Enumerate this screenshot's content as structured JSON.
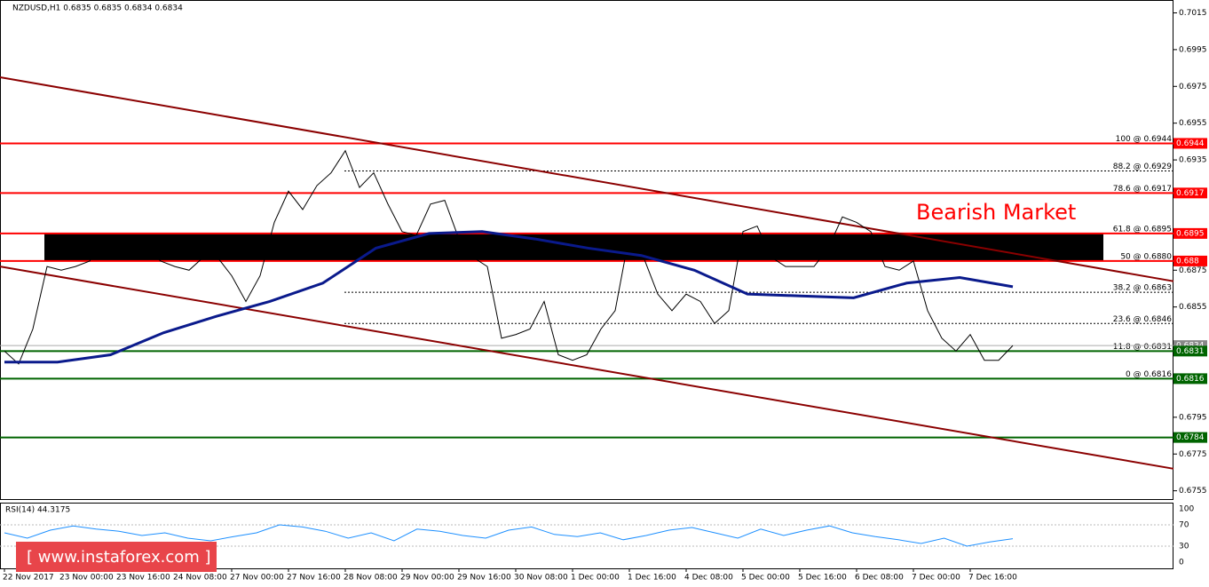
{
  "chart_data": {
    "type": "line",
    "title": "NZDUSD,H1  0.6835 0.6835 0.6834 0.6834",
    "annotation": "Bearish Market",
    "watermark": "[  www.instaforex.com ]",
    "xlabels": [
      "22 Nov 2017",
      "23 Nov 00:00",
      "23 Nov 16:00",
      "24 Nov 08:00",
      "27 Nov 00:00",
      "27 Nov 16:00",
      "28 Nov 08:00",
      "29 Nov 00:00",
      "29 Nov 16:00",
      "30 Nov 08:00",
      "1 Dec 00:00",
      "1 Dec 16:00",
      "4 Dec 08:00",
      "5 Dec 00:00",
      "5 Dec 16:00",
      "6 Dec 08:00",
      "7 Dec 00:00",
      "7 Dec 16:00"
    ],
    "ylim": [
      0.675,
      0.7022
    ],
    "yticks": [
      0.7015,
      0.6995,
      0.6975,
      0.6955,
      0.6935,
      0.6875,
      0.6855,
      0.6795,
      0.6775,
      0.6755
    ],
    "series": [
      {
        "name": "NZDUSD",
        "color": "#000000",
        "values": [
          0.6831,
          0.6824,
          0.6843,
          0.6877,
          0.6875,
          0.6877,
          0.688,
          0.6894,
          0.6892,
          0.689,
          0.6887,
          0.688,
          0.6877,
          0.6875,
          0.6882,
          0.6882,
          0.6872,
          0.6858,
          0.6872,
          0.6901,
          0.6918,
          0.6908,
          0.6921,
          0.6928,
          0.694,
          0.692,
          0.6928,
          0.6911,
          0.6896,
          0.6894,
          0.6911,
          0.6913,
          0.6892,
          0.6882,
          0.6877,
          0.6838,
          0.684,
          0.6843,
          0.6858,
          0.6829,
          0.6826,
          0.6829,
          0.6843,
          0.6853,
          0.6894,
          0.6882,
          0.6862,
          0.6853,
          0.6862,
          0.6858,
          0.6846,
          0.6853,
          0.6896,
          0.6899,
          0.6882,
          0.6877,
          0.6877,
          0.6877,
          0.6887,
          0.6904,
          0.6901,
          0.6896,
          0.6877,
          0.6875,
          0.688,
          0.6853,
          0.6838,
          0.6831,
          0.684,
          0.6826,
          0.6826,
          0.6834
        ]
      },
      {
        "name": "MA",
        "color": "#0a1a8c",
        "values": [
          0.6825,
          0.6825,
          0.6829,
          0.6841,
          0.685,
          0.6858,
          0.6868,
          0.6887,
          0.6895,
          0.6896,
          0.6892,
          0.6887,
          0.6883,
          0.6875,
          0.6862,
          0.6861,
          0.686,
          0.6868,
          0.6871,
          0.6866
        ]
      }
    ],
    "trendlines": [
      {
        "start": 0.698,
        "end": 0.6869
      },
      {
        "start": 0.6877,
        "end": 0.6767
      }
    ],
    "levels": [
      {
        "value": 0.6944,
        "color": "#ff0000"
      },
      {
        "value": 0.6917,
        "color": "#ff0000"
      },
      {
        "value": 0.6895,
        "color": "#ff0000"
      },
      {
        "value": 0.688,
        "color": "#ff0000"
      },
      {
        "value": 0.6831,
        "color": "#006400"
      },
      {
        "value": 0.6816,
        "color": "#006400"
      },
      {
        "value": 0.6784,
        "color": "#006400"
      }
    ],
    "zone": [
      0.688,
      0.6895
    ],
    "price": 0.6834,
    "fib": [
      {
        "label": "100 @ 0.6944",
        "value": 0.6944,
        "dotted": false
      },
      {
        "label": "88.2 @ 0.6929",
        "value": 0.6929,
        "dotted": true
      },
      {
        "label": "78.6 @ 0.6917",
        "value": 0.6917,
        "dotted": false
      },
      {
        "label": "61.8 @ 0.6895",
        "value": 0.6895,
        "dotted": false
      },
      {
        "label": "50 @ 0.6880",
        "value": 0.688,
        "dotted": false
      },
      {
        "label": "38.2 @ 0.6863",
        "value": 0.6863,
        "dotted": true
      },
      {
        "label": "23.6 @ 0.6846",
        "value": 0.6846,
        "dotted": true
      },
      {
        "label": "11.8 @ 0.6831",
        "value": 0.6831,
        "dotted": true
      },
      {
        "label": "0 @ 0.6816",
        "value": 0.6816,
        "dotted": false
      }
    ],
    "rsi": {
      "title": "RSI(14) 44.3175",
      "ylim": [
        0,
        100
      ],
      "yticks": [
        100,
        70,
        30,
        0
      ],
      "color": "#1e90ff",
      "values": [
        55,
        45,
        60,
        68,
        62,
        58,
        50,
        55,
        45,
        40,
        48,
        55,
        70,
        66,
        58,
        45,
        55,
        40,
        62,
        58,
        50,
        45,
        60,
        66,
        52,
        48,
        55,
        42,
        50,
        60,
        65,
        55,
        45,
        62,
        50,
        60,
        68,
        55,
        48,
        42,
        35,
        45,
        30,
        38,
        44
      ]
    }
  }
}
